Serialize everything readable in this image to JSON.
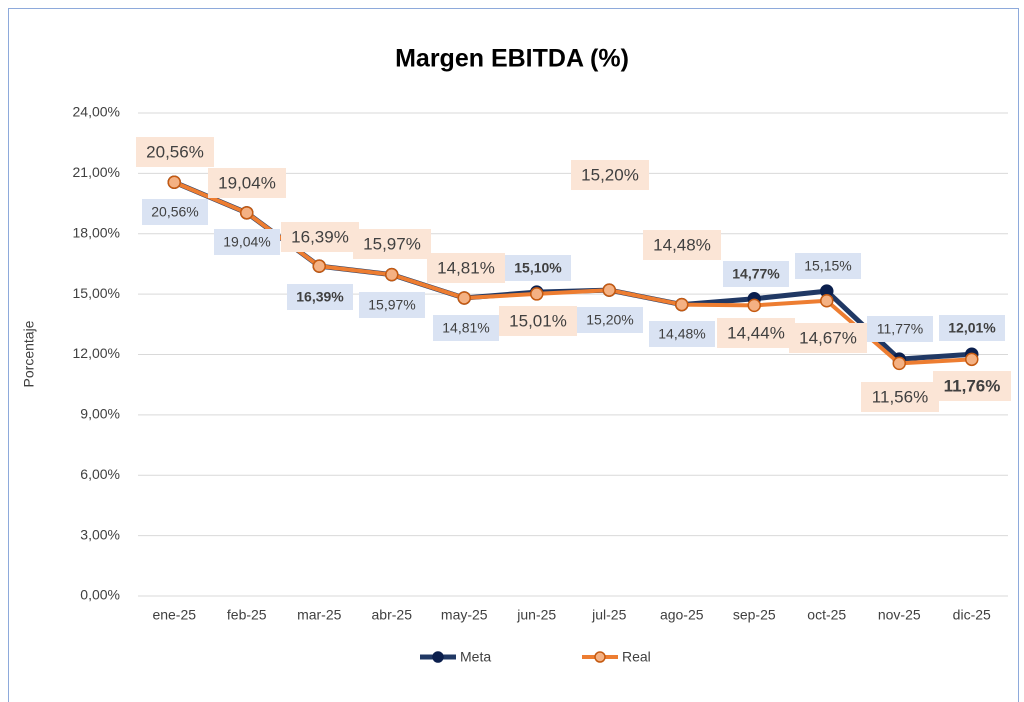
{
  "chart_data": {
    "type": "line",
    "title": "Margen EBITDA (%)",
    "y_label": "Porcentaje",
    "categories": [
      "ene-25",
      "feb-25",
      "mar-25",
      "abr-25",
      "may-25",
      "jun-25",
      "jul-25",
      "ago-25",
      "sep-25",
      "oct-25",
      "nov-25",
      "dic-25"
    ],
    "series": [
      {
        "name": "Meta",
        "color": "#203864",
        "values": [
          20.56,
          19.04,
          16.39,
          15.97,
          14.81,
          15.1,
          15.2,
          14.48,
          14.77,
          15.15,
          11.77,
          12.01
        ],
        "value_labels": [
          "20,56%",
          "19,04%",
          "16,39%",
          "15,97%",
          "14,81%",
          "15,10%",
          "15,20%",
          "14,48%",
          "14,77%",
          "15,15%",
          "11,77%",
          "12,01%"
        ]
      },
      {
        "name": "Real",
        "color": "#ed7d31",
        "values": [
          20.56,
          19.04,
          16.39,
          15.97,
          14.81,
          15.01,
          15.2,
          14.48,
          14.44,
          14.67,
          11.56,
          11.76
        ],
        "value_labels": [
          "20,56%",
          "19,04%",
          "16,39%",
          "15,97%",
          "14,81%",
          "15,01%",
          "15,20%",
          "14,48%",
          "14,44%",
          "14,67%",
          "11,56%",
          "11,76%"
        ]
      }
    ],
    "ylim": [
      0,
      24
    ],
    "yticks": [
      {
        "value": 0,
        "label": "0,00%"
      },
      {
        "value": 3,
        "label": "3,00%"
      },
      {
        "value": 6,
        "label": "6,00%"
      },
      {
        "value": 9,
        "label": "9,00%"
      },
      {
        "value": 12,
        "label": "12,00%"
      },
      {
        "value": 15,
        "label": "15,00%"
      },
      {
        "value": 18,
        "label": "18,00%"
      },
      {
        "value": 21,
        "label": "21,00%"
      },
      {
        "value": 24,
        "label": "24,00%"
      }
    ],
    "grid": true,
    "legend": "bottom"
  }
}
